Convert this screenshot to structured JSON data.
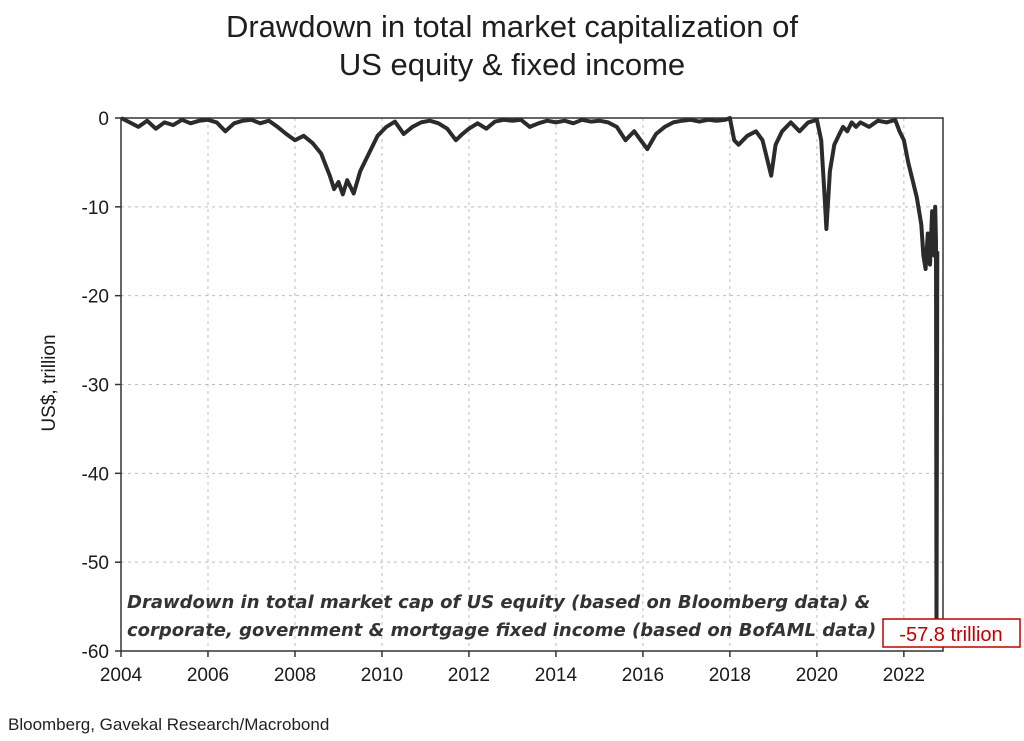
{
  "title_line1": "Drawdown in total market capitalization of",
  "title_line2": "US equity & fixed income",
  "source": "Bloomberg, Gavekal Research/Macrobond",
  "colors": {
    "line": "#2b2b2b",
    "callout": "#c00000",
    "grid": "#bdbdbd"
  },
  "chart_data": {
    "type": "line",
    "title": "Drawdown in total market capitalization of US equity & fixed income",
    "xlabel": "",
    "ylabel": "US$, trillion",
    "xlim": [
      2004,
      2022.9
    ],
    "ylim": [
      -60,
      0
    ],
    "xticks": [
      "2004",
      "2006",
      "2008",
      "2010",
      "2012",
      "2014",
      "2016",
      "2018",
      "2020",
      "2022"
    ],
    "yticks": [
      "0",
      "-10",
      "-20",
      "-30",
      "-40",
      "-50",
      "-60"
    ],
    "grid": true,
    "annotation_lines": [
      "Drawdown in total market cap of US equity (based on Bloomberg data) &",
      "corporate, government & mortgage fixed income (based on BofAML data)"
    ],
    "callout": "-57.8 trillion",
    "series": [
      {
        "x": [
          2004.0,
          2004.2,
          2004.4,
          2004.6,
          2004.8,
          2005.0,
          2005.2,
          2005.4,
          2005.6,
          2005.8,
          2006.0,
          2006.2,
          2006.4,
          2006.6,
          2006.8,
          2007.0,
          2007.2,
          2007.4,
          2007.6,
          2007.8,
          2008.0,
          2008.2,
          2008.4,
          2008.6,
          2008.8,
          2008.9,
          2009.0,
          2009.1,
          2009.2,
          2009.35,
          2009.5,
          2009.7,
          2009.9,
          2010.1,
          2010.3,
          2010.5,
          2010.7,
          2010.9,
          2011.1,
          2011.3,
          2011.5,
          2011.7,
          2011.85,
          2012.0,
          2012.2,
          2012.4,
          2012.6,
          2012.8,
          2013.0,
          2013.2,
          2013.4,
          2013.6,
          2013.8,
          2014.0,
          2014.2,
          2014.4,
          2014.6,
          2014.8,
          2015.0,
          2015.2,
          2015.4,
          2015.6,
          2015.8,
          2015.95,
          2016.1,
          2016.3,
          2016.5,
          2016.7,
          2016.9,
          2017.1,
          2017.3,
          2017.5,
          2017.7,
          2017.9,
          2018.0,
          2018.1,
          2018.2,
          2018.4,
          2018.6,
          2018.75,
          2018.85,
          2018.95,
          2019.05,
          2019.2,
          2019.4,
          2019.6,
          2019.8,
          2020.0,
          2020.1,
          2020.18,
          2020.22,
          2020.3,
          2020.4,
          2020.5,
          2020.6,
          2020.7,
          2020.8,
          2020.9,
          2021.0,
          2021.2,
          2021.4,
          2021.6,
          2021.8,
          2021.9,
          2022.0,
          2022.1,
          2022.2,
          2022.3,
          2022.4,
          2022.45,
          2022.5,
          2022.55,
          2022.6,
          2022.65,
          2022.7,
          2022.72,
          2022.74,
          2022.75,
          2022.77
        ],
        "y": [
          0,
          -0.5,
          -1.0,
          -0.3,
          -1.2,
          -0.5,
          -0.8,
          -0.2,
          -0.6,
          -0.3,
          -0.2,
          -0.5,
          -1.5,
          -0.6,
          -0.3,
          -0.2,
          -0.6,
          -0.3,
          -1.0,
          -1.8,
          -2.5,
          -2.0,
          -2.8,
          -4.0,
          -6.5,
          -8.0,
          -7.2,
          -8.6,
          -7.0,
          -8.5,
          -6.0,
          -4.0,
          -2.0,
          -1.0,
          -0.4,
          -1.8,
          -1.0,
          -0.5,
          -0.3,
          -0.6,
          -1.2,
          -2.5,
          -1.8,
          -1.2,
          -0.6,
          -1.2,
          -0.4,
          -0.2,
          -0.3,
          -0.2,
          -1.0,
          -0.6,
          -0.3,
          -0.5,
          -0.3,
          -0.6,
          -0.2,
          -0.4,
          -0.3,
          -0.5,
          -1.0,
          -2.5,
          -1.5,
          -2.5,
          -3.5,
          -1.8,
          -1.0,
          -0.5,
          -0.3,
          -0.2,
          -0.4,
          -0.2,
          -0.3,
          -0.2,
          0,
          -2.5,
          -3.0,
          -2.0,
          -1.5,
          -2.5,
          -4.5,
          -6.5,
          -3.0,
          -1.5,
          -0.5,
          -1.5,
          -0.5,
          -0.2,
          -2.5,
          -9.0,
          -12.5,
          -6.0,
          -3.0,
          -2.0,
          -1.0,
          -1.5,
          -0.5,
          -1.0,
          -0.5,
          -1.0,
          -0.3,
          -0.5,
          -0.2,
          -1.5,
          -2.5,
          -5.0,
          -7.0,
          -9.0,
          -12.0,
          -15.5,
          -17.0,
          -13.0,
          -16.5,
          -10.5,
          -15.5,
          -10.0,
          -14.0,
          -57.8,
          -15.0
        ]
      }
    ]
  }
}
